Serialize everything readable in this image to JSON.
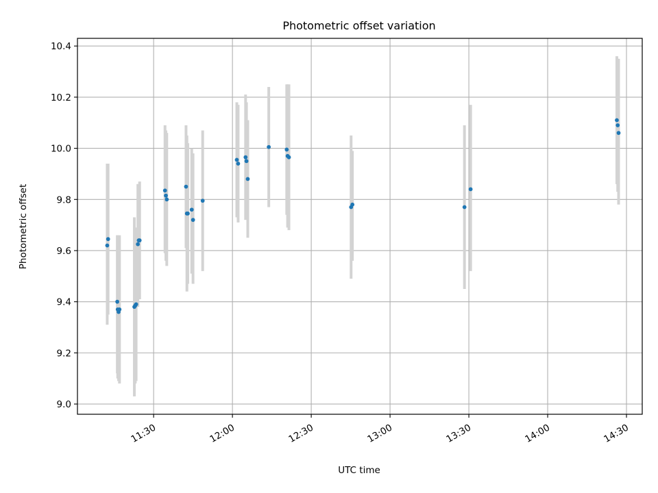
{
  "chart_data": {
    "type": "scatter",
    "title": "Photometric offset variation",
    "xlabel": "UTC time",
    "ylabel": "Photometric offset",
    "x_axis": {
      "kind": "time",
      "range": [
        "11:01",
        "14:36"
      ],
      "ticks": [
        "11:30",
        "12:00",
        "12:30",
        "13:00",
        "13:30",
        "14:00",
        "14:30"
      ],
      "tick_label_rotation_deg": 30
    },
    "y_axis": {
      "range": [
        8.96,
        10.43
      ],
      "ticks": [
        "9.0",
        "9.2",
        "9.4",
        "9.6",
        "9.8",
        "10.0",
        "10.2",
        "10.4"
      ]
    },
    "grid": true,
    "legend": "none",
    "colors": {
      "point": "#1f77b4",
      "errorbar": "#d3d3d3",
      "grid": "#b0b0b0"
    },
    "points": [
      {
        "x": "11:12:20",
        "y": 9.62,
        "yerr_low": 9.31,
        "yerr_high": 9.94
      },
      {
        "x": "11:12:40",
        "y": 9.645,
        "yerr_low": 9.35,
        "yerr_high": 9.94
      },
      {
        "x": "11:16:10",
        "y": 9.4,
        "yerr_low": 9.12,
        "yerr_high": 9.66
      },
      {
        "x": "11:16:20",
        "y": 9.37,
        "yerr_low": 9.1,
        "yerr_high": 9.66
      },
      {
        "x": "11:16:40",
        "y": 9.36,
        "yerr_low": 9.09,
        "yerr_high": 9.62
      },
      {
        "x": "11:17:00",
        "y": 9.37,
        "yerr_low": 9.08,
        "yerr_high": 9.66
      },
      {
        "x": "11:22:40",
        "y": 9.38,
        "yerr_low": 9.03,
        "yerr_high": 9.73
      },
      {
        "x": "11:23:00",
        "y": 9.385,
        "yerr_low": 9.08,
        "yerr_high": 9.69
      },
      {
        "x": "11:23:20",
        "y": 9.39,
        "yerr_low": 9.09,
        "yerr_high": 9.69
      },
      {
        "x": "11:24:00",
        "y": 9.625,
        "yerr_low": 9.38,
        "yerr_high": 9.86
      },
      {
        "x": "11:24:20",
        "y": 9.64,
        "yerr_low": 9.42,
        "yerr_high": 9.86
      },
      {
        "x": "11:24:40",
        "y": 9.64,
        "yerr_low": 9.41,
        "yerr_high": 9.87
      },
      {
        "x": "11:34:20",
        "y": 9.835,
        "yerr_low": 9.59,
        "yerr_high": 10.09
      },
      {
        "x": "11:34:40",
        "y": 9.815,
        "yerr_low": 9.56,
        "yerr_high": 10.07
      },
      {
        "x": "11:35:00",
        "y": 9.8,
        "yerr_low": 9.54,
        "yerr_high": 10.06
      },
      {
        "x": "11:42:20",
        "y": 9.85,
        "yerr_low": 9.61,
        "yerr_high": 10.09
      },
      {
        "x": "11:42:40",
        "y": 9.745,
        "yerr_low": 9.44,
        "yerr_high": 10.05
      },
      {
        "x": "11:43:00",
        "y": 9.745,
        "yerr_low": 9.47,
        "yerr_high": 10.02
      },
      {
        "x": "11:44:30",
        "y": 9.76,
        "yerr_low": 9.51,
        "yerr_high": 10.0
      },
      {
        "x": "11:45:00",
        "y": 9.72,
        "yerr_low": 9.47,
        "yerr_high": 9.98
      },
      {
        "x": "11:48:40",
        "y": 9.795,
        "yerr_low": 9.52,
        "yerr_high": 10.07
      },
      {
        "x": "12:01:40",
        "y": 9.955,
        "yerr_low": 9.73,
        "yerr_high": 10.18
      },
      {
        "x": "12:02:10",
        "y": 9.94,
        "yerr_low": 9.71,
        "yerr_high": 10.17
      },
      {
        "x": "12:05:00",
        "y": 9.965,
        "yerr_low": 9.72,
        "yerr_high": 10.21
      },
      {
        "x": "12:05:20",
        "y": 9.95,
        "yerr_low": 9.73,
        "yerr_high": 10.18
      },
      {
        "x": "12:05:50",
        "y": 9.88,
        "yerr_low": 9.65,
        "yerr_high": 10.11
      },
      {
        "x": "12:13:50",
        "y": 10.005,
        "yerr_low": 9.77,
        "yerr_high": 10.24
      },
      {
        "x": "12:20:40",
        "y": 9.995,
        "yerr_low": 9.74,
        "yerr_high": 10.25
      },
      {
        "x": "12:21:00",
        "y": 9.97,
        "yerr_low": 9.69,
        "yerr_high": 10.25
      },
      {
        "x": "12:21:30",
        "y": 9.965,
        "yerr_low": 9.68,
        "yerr_high": 10.25
      },
      {
        "x": "12:45:10",
        "y": 9.77,
        "yerr_low": 9.49,
        "yerr_high": 10.05
      },
      {
        "x": "12:45:40",
        "y": 9.78,
        "yerr_low": 9.56,
        "yerr_high": 9.99
      },
      {
        "x": "13:28:20",
        "y": 9.77,
        "yerr_low": 9.45,
        "yerr_high": 10.09
      },
      {
        "x": "13:30:40",
        "y": 9.84,
        "yerr_low": 9.52,
        "yerr_high": 10.17
      },
      {
        "x": "14:26:20",
        "y": 10.11,
        "yerr_low": 9.86,
        "yerr_high": 10.36
      },
      {
        "x": "14:26:40",
        "y": 10.09,
        "yerr_low": 9.83,
        "yerr_high": 10.35
      },
      {
        "x": "14:27:00",
        "y": 10.06,
        "yerr_low": 9.78,
        "yerr_high": 10.35
      }
    ]
  }
}
